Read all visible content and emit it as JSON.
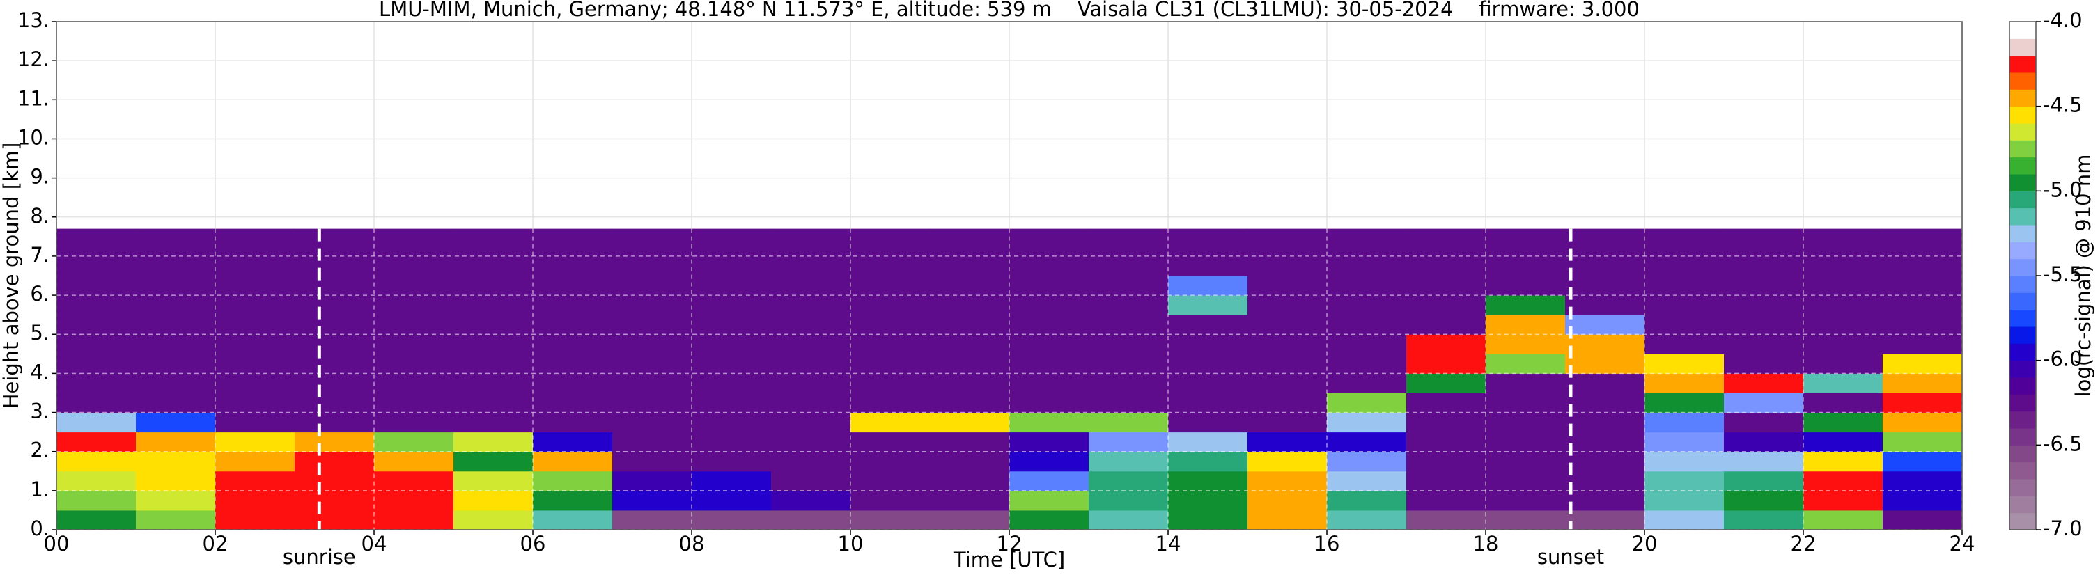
{
  "chart_data": {
    "type": "heatmap",
    "title": "LMU-MIM, Munich, Germany; 48.148° N 11.573° E, altitude: 539 m    Vaisala CL31 (CL31LMU): 30-05-2024    firmware: 3.000",
    "x_label": "Time [UTC]",
    "y_label": "Height above ground [km]",
    "colorbar_label": "log(rc-signal) @ 910 nm",
    "xlim": [
      0,
      24
    ],
    "xticks": [
      {
        "value": 0,
        "label": "00"
      },
      {
        "value": 2,
        "label": "02"
      },
      {
        "value": 4,
        "label": "04"
      },
      {
        "value": 6,
        "label": "06"
      },
      {
        "value": 8,
        "label": "08"
      },
      10,
      12,
      14,
      16,
      18,
      20,
      22,
      24
    ],
    "ylim": [
      0,
      13
    ],
    "yticks": [
      {
        "value": 0,
        "label": "0."
      },
      {
        "value": 1,
        "label": "1."
      },
      {
        "value": 2,
        "label": "2."
      },
      {
        "value": 3,
        "label": "3."
      },
      {
        "value": 4,
        "label": "4."
      },
      {
        "value": 5,
        "label": "5."
      },
      {
        "value": 6,
        "label": "6."
      },
      {
        "value": 7,
        "label": "7."
      },
      {
        "value": 8,
        "label": "8."
      },
      {
        "value": 9,
        "label": "9."
      },
      {
        "value": 10,
        "label": "10."
      },
      {
        "value": 11,
        "label": "11."
      },
      {
        "value": 12,
        "label": "12."
      },
      {
        "value": 13,
        "label": "13."
      }
    ],
    "zlim": [
      -7,
      -4
    ],
    "zticks": [
      {
        "value": -7,
        "label": "-7.0"
      },
      {
        "value": -6.5,
        "label": "-6.5"
      },
      {
        "value": -6,
        "label": "-6.0"
      },
      {
        "value": -5.5,
        "label": "-5.5"
      },
      {
        "value": -5,
        "label": "-5.0"
      },
      {
        "value": -4.5,
        "label": "-4.5"
      },
      {
        "value": -4,
        "label": "-4.0"
      }
    ],
    "colormap": [
      "#a890a8",
      "#a07ea0",
      "#986c98",
      "#8e5a90",
      "#834888",
      "#783488",
      "#6c2088",
      "#5e0c8c",
      "#500098",
      "#3c00b0",
      "#2400cc",
      "#0818e8",
      "#1848ff",
      "#3a68ff",
      "#5a80ff",
      "#7a94ff",
      "#98aaff",
      "#9cc4f0",
      "#58c0b0",
      "#28a878",
      "#109030",
      "#38b030",
      "#80d040",
      "#d0e830",
      "#ffe000",
      "#ffa800",
      "#ff6000",
      "#ff1010",
      "#ecd0d0",
      "#ffffff"
    ],
    "grid": true,
    "x_edges": [
      0,
      1,
      2,
      3,
      4,
      5,
      6,
      7,
      8,
      9,
      10,
      11,
      12,
      13,
      14,
      15,
      16,
      17,
      18,
      19,
      20,
      21,
      22,
      23,
      24
    ],
    "y_edges": [
      0,
      0.5,
      1,
      1.5,
      2,
      2.5,
      3,
      3.5,
      4,
      4.5,
      5,
      5.5,
      6,
      6.5,
      7,
      7.5,
      7.7
    ],
    "z": [
      [
        -4.9,
        -4.8,
        -4.3,
        -4.2,
        -4.3,
        -4.7,
        -5.2,
        -6.6,
        -6.6,
        -6.6,
        -6.6,
        -6.6,
        -5.0,
        -5.2,
        -5.0,
        -4.5,
        -5.2,
        -6.6,
        -6.6,
        -6.6,
        -5.3,
        -5.1,
        -4.8,
        -6.2
      ],
      [
        -4.8,
        -4.7,
        -4.2,
        -4.2,
        -4.3,
        -4.6,
        -4.9,
        -5.9,
        -6.0,
        -6.1,
        -6.2,
        -6.2,
        -4.8,
        -5.1,
        -5.0,
        -4.4,
        -5.1,
        -6.3,
        -6.3,
        -6.3,
        -5.2,
        -5.0,
        -4.3,
        -6.0
      ],
      [
        -4.7,
        -4.6,
        -4.3,
        -4.3,
        -4.3,
        -4.7,
        -4.8,
        -6.1,
        -6.0,
        -6.2,
        -6.2,
        -6.2,
        -5.6,
        -5.1,
        -5.0,
        -4.4,
        -5.3,
        -6.3,
        -6.3,
        -6.3,
        -5.2,
        -5.1,
        -4.2,
        -5.9
      ],
      [
        -4.6,
        -4.6,
        -4.4,
        -4.3,
        -4.4,
        -4.9,
        -4.4,
        -6.2,
        -6.2,
        -6.2,
        -6.2,
        -6.2,
        -6.0,
        -5.2,
        -5.1,
        -4.6,
        -5.5,
        -6.3,
        -6.3,
        -6.3,
        -5.3,
        -5.3,
        -4.6,
        -5.8
      ],
      [
        -4.3,
        -4.5,
        -4.6,
        -4.5,
        -4.8,
        -4.7,
        -6.0,
        -6.3,
        -6.3,
        -6.3,
        -6.3,
        -6.3,
        -6.1,
        -5.4,
        -5.3,
        -6.0,
        -6.0,
        -6.3,
        -6.3,
        -6.3,
        -5.5,
        -6.1,
        -6.0,
        -4.8
      ],
      [
        -5.3,
        -5.8,
        -6.2,
        -6.3,
        -6.3,
        -6.3,
        -6.3,
        -6.3,
        -6.3,
        -6.3,
        -4.6,
        -4.6,
        -4.8,
        -4.8,
        -6.2,
        -6.3,
        -5.3,
        -6.3,
        -6.3,
        -6.3,
        -5.6,
        -6.2,
        -5.0,
        -4.4
      ],
      [
        -6.3,
        -6.3,
        -6.3,
        -6.3,
        -6.3,
        -6.3,
        -6.3,
        -6.3,
        -6.3,
        -6.3,
        -6.3,
        -6.3,
        -6.3,
        -6.3,
        -6.3,
        -6.3,
        -4.8,
        -6.3,
        -6.3,
        -6.3,
        -5.0,
        -5.5,
        -6.3,
        -4.3
      ],
      [
        -6.3,
        -6.3,
        -6.3,
        -6.3,
        -6.3,
        -6.3,
        -6.3,
        -6.3,
        -6.3,
        -6.3,
        -6.3,
        -6.3,
        -6.3,
        -6.3,
        -6.3,
        -6.3,
        -6.3,
        -4.9,
        -6.3,
        -6.3,
        -4.4,
        -4.3,
        -5.2,
        -4.4
      ],
      [
        -6.3,
        -6.3,
        -6.3,
        -6.3,
        -6.3,
        -6.3,
        -6.3,
        -6.3,
        -6.3,
        -6.3,
        -6.3,
        -6.3,
        -6.3,
        -6.3,
        -6.3,
        -6.3,
        -6.3,
        -4.3,
        -4.8,
        -4.5,
        -4.6,
        -6.3,
        -6.3,
        -4.6
      ],
      [
        -6.3,
        -6.3,
        -6.3,
        -6.3,
        -6.3,
        -6.3,
        -6.3,
        -6.3,
        -6.3,
        -6.3,
        -6.3,
        -6.3,
        -6.3,
        -6.3,
        -6.3,
        -6.3,
        -6.3,
        -4.2,
        -4.5,
        -4.4,
        -6.3,
        -6.3,
        -6.3,
        -6.3
      ],
      [
        -6.3,
        -6.3,
        -6.3,
        -6.3,
        -6.3,
        -6.3,
        -6.3,
        -6.3,
        -6.3,
        -6.3,
        -6.3,
        -6.3,
        -6.3,
        -6.3,
        -6.3,
        -6.3,
        -6.3,
        -6.3,
        -4.4,
        -5.5,
        -6.3,
        -6.3,
        -6.3,
        -6.3
      ],
      [
        -6.3,
        -6.3,
        -6.3,
        -6.3,
        -6.3,
        -6.3,
        -6.3,
        -6.3,
        -6.3,
        -6.3,
        -6.3,
        -6.3,
        -6.3,
        -6.3,
        -5.2,
        -6.3,
        -6.3,
        -6.3,
        -5.0,
        -6.3,
        -6.3,
        -6.3,
        -6.3,
        -6.3
      ],
      [
        -6.3,
        -6.3,
        -6.3,
        -6.3,
        -6.3,
        -6.3,
        -6.3,
        -6.3,
        -6.3,
        -6.3,
        -6.3,
        -6.3,
        -6.3,
        -6.3,
        -5.6,
        -6.3,
        -6.3,
        -6.3,
        -6.3,
        -6.3,
        -6.3,
        -6.3,
        -6.3,
        -6.3
      ],
      [
        -6.2,
        -6.2,
        -6.2,
        -6.2,
        -6.2,
        -6.2,
        -6.2,
        -6.2,
        -6.2,
        -6.2,
        -6.2,
        -6.2,
        -6.2,
        -6.2,
        -6.2,
        -6.2,
        -6.2,
        -6.2,
        -6.2,
        -6.2,
        -6.2,
        -6.2,
        -6.2,
        -6.2
      ],
      [
        -6.2,
        -6.2,
        -6.2,
        -6.2,
        -6.2,
        -6.2,
        -6.2,
        -6.2,
        -6.2,
        -6.2,
        -6.2,
        -6.2,
        -6.2,
        -6.2,
        -6.2,
        -6.2,
        -6.2,
        -6.2,
        -6.2,
        -6.2,
        -6.2,
        -6.2,
        -6.2,
        -6.2
      ],
      [
        -6.2,
        -6.2,
        -6.2,
        -6.2,
        -6.2,
        -6.2,
        -6.2,
        -6.2,
        -6.2,
        -6.2,
        -6.2,
        -6.2,
        -6.2,
        -6.2,
        -6.2,
        -6.2,
        -6.2,
        -6.2,
        -6.2,
        -6.2,
        -6.2,
        -6.2,
        -6.2,
        -6.2
      ]
    ],
    "annotations": [
      {
        "label": "sunrise",
        "x": 3.31
      },
      {
        "label": "sunset",
        "x": 19.07
      }
    ]
  }
}
